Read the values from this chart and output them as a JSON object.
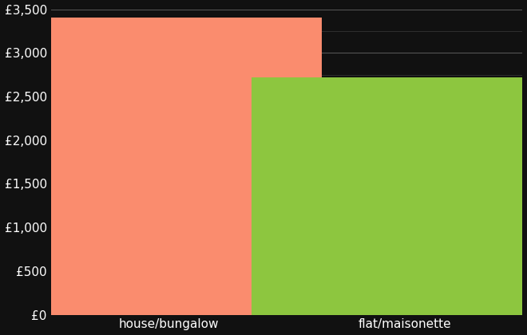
{
  "categories": [
    "house/bungalow",
    "flat/maisonette"
  ],
  "values": [
    3400,
    2720
  ],
  "bar_colors": [
    "#FA8C6E",
    "#8DC63F"
  ],
  "background_color": "#111111",
  "text_color": "#ffffff",
  "major_grid_color": "#555555",
  "minor_grid_color": "#333333",
  "ylim": [
    0,
    3500
  ],
  "yticks_major": [
    0,
    500,
    1000,
    1500,
    2000,
    2500,
    3000,
    3500
  ],
  "yticks_minor": [
    250,
    750,
    1250,
    1750,
    2250,
    2750,
    3250
  ],
  "bar_width": 0.65,
  "x_positions": [
    0.25,
    0.75
  ],
  "xlim": [
    0,
    1
  ]
}
